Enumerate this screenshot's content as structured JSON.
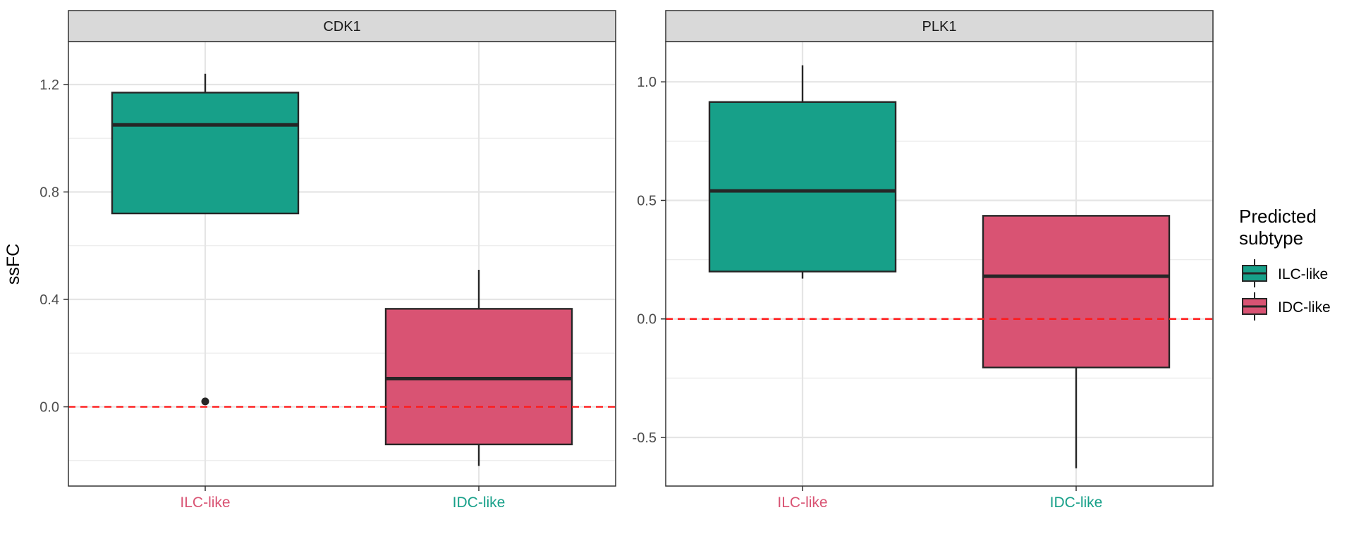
{
  "chart_data": {
    "type": "boxplot",
    "ylabel": "ssFC",
    "legend": {
      "title_lines": [
        "Predicted",
        "subtype"
      ],
      "position": "right",
      "entries": [
        {
          "label": "ILC-like",
          "color": "#17a089"
        },
        {
          "label": "IDC-like",
          "color": "#d95373"
        }
      ]
    },
    "reference_line": {
      "y": 0,
      "color": "#ff1a1a",
      "style": "dashed"
    },
    "grid": true,
    "panels": [
      {
        "title": "CDK1",
        "ylim": [
          -0.295,
          1.36
        ],
        "yticks": [
          0.0,
          0.4,
          0.8,
          1.2
        ],
        "ytick_labels": [
          "0.0",
          "0.4",
          "0.8",
          "1.2"
        ],
        "categories": [
          {
            "label": "ILC-like",
            "label_color": "#d95373",
            "fill": "#17a089",
            "whisker_low": 0.72,
            "q1": 0.72,
            "median": 1.05,
            "q3": 1.17,
            "whisker_high": 1.24,
            "outliers": [
              0.02
            ]
          },
          {
            "label": "IDC-like",
            "label_color": "#17a089",
            "fill": "#d95373",
            "whisker_low": -0.22,
            "q1": -0.14,
            "median": 0.105,
            "q3": 0.365,
            "whisker_high": 0.51,
            "outliers": []
          }
        ]
      },
      {
        "title": "PLK1",
        "ylim": [
          -0.705,
          1.17
        ],
        "yticks": [
          -0.5,
          0.0,
          0.5,
          1.0
        ],
        "ytick_labels": [
          "-0.5",
          "0.0",
          "0.5",
          "1.0"
        ],
        "categories": [
          {
            "label": "ILC-like",
            "label_color": "#d95373",
            "fill": "#17a089",
            "whisker_low": 0.17,
            "q1": 0.2,
            "median": 0.54,
            "q3": 0.915,
            "whisker_high": 1.07,
            "outliers": []
          },
          {
            "label": "IDC-like",
            "label_color": "#17a089",
            "fill": "#d95373",
            "whisker_low": -0.63,
            "q1": -0.205,
            "median": 0.18,
            "q3": 0.435,
            "whisker_high": 0.435,
            "outliers": []
          }
        ]
      }
    ]
  }
}
